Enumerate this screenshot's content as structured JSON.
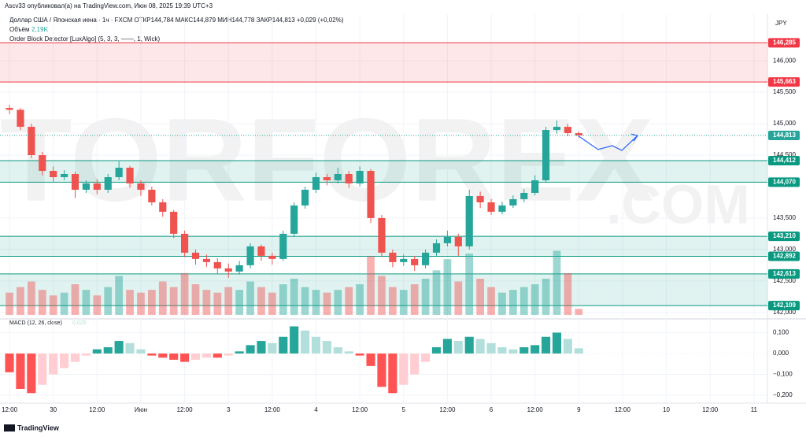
{
  "header": {
    "publisher": "Ascv33 опубликовал(а) на TradingView.com, Июн 08, 2025 19:39 UTC+3",
    "symbol_line": "Доллар США / Японская иена · 1ч · FXCM  ОТКР144,784  МАКС144,879  МИН144,778  ЗАКР144,813  +0,029 (+0,02%)",
    "volume_label": "Объём",
    "volume_value": "2,19K",
    "indicator": "Order Block Detector [LuxAlgo] (5, 3, 3, ——, 1, Wick)",
    "currency": "JPY",
    "footer": "TradingView",
    "watermark": [
      "TORFOREX",
      ".COM"
    ]
  },
  "chart_data": [
    {
      "type": "candlestick",
      "up_color": "#26a69a",
      "down_color": "#ef5350",
      "x": [
        0,
        3,
        6,
        9,
        12,
        15,
        18,
        21,
        24,
        27,
        30,
        33,
        36,
        39,
        42,
        45,
        48,
        51,
        54,
        57,
        60,
        63,
        66,
        69,
        72,
        75,
        78,
        81,
        84,
        87,
        90,
        93,
        96,
        99,
        102,
        105,
        108,
        111,
        114,
        117,
        120,
        123,
        126,
        129,
        132,
        135,
        138,
        141,
        144,
        147,
        150,
        153,
        156
      ],
      "open": [
        145.25,
        145.22,
        144.95,
        144.5,
        144.25,
        144.15,
        144.2,
        143.95,
        144.05,
        143.95,
        144.15,
        144.3,
        144.05,
        143.95,
        143.75,
        143.6,
        143.25,
        142.95,
        142.85,
        142.8,
        142.7,
        142.65,
        142.75,
        143.05,
        142.9,
        142.85,
        143.25,
        143.7,
        143.95,
        144.15,
        144.1,
        144.2,
        144.05,
        144.25,
        143.5,
        142.95,
        142.8,
        142.85,
        142.75,
        142.95,
        143.1,
        143.2,
        143.05,
        143.85,
        143.75,
        143.6,
        143.7,
        143.8,
        143.9,
        144.1,
        144.9,
        144.95,
        144.85
      ],
      "high": [
        145.3,
        145.25,
        145.0,
        144.55,
        144.32,
        144.26,
        144.24,
        144.1,
        144.12,
        144.2,
        144.4,
        144.33,
        144.1,
        144.0,
        143.8,
        143.63,
        143.3,
        143.0,
        142.92,
        142.86,
        142.78,
        142.82,
        143.1,
        143.08,
        142.95,
        143.3,
        143.75,
        144.0,
        144.22,
        144.2,
        144.3,
        144.25,
        144.32,
        144.28,
        143.55,
        143.0,
        142.92,
        142.9,
        143.0,
        143.16,
        143.3,
        143.25,
        143.95,
        143.92,
        143.8,
        143.76,
        143.86,
        143.96,
        144.18,
        144.95,
        145.05,
        145.0,
        144.879
      ],
      "low": [
        145.15,
        144.9,
        144.45,
        144.18,
        144.08,
        144.1,
        143.82,
        143.9,
        143.88,
        143.9,
        144.1,
        143.98,
        143.85,
        143.7,
        143.52,
        143.18,
        142.88,
        142.76,
        142.72,
        142.62,
        142.55,
        142.6,
        142.7,
        142.82,
        142.76,
        142.82,
        143.2,
        143.65,
        143.9,
        144.02,
        144.05,
        143.98,
        144.0,
        143.42,
        142.88,
        142.72,
        142.74,
        142.66,
        142.7,
        142.9,
        143.05,
        142.9,
        143.0,
        143.66,
        143.55,
        143.56,
        143.66,
        143.75,
        143.86,
        144.06,
        144.84,
        144.8,
        144.778
      ],
      "close": [
        145.22,
        144.95,
        144.5,
        144.25,
        144.15,
        144.2,
        143.95,
        144.05,
        143.95,
        144.15,
        144.3,
        144.05,
        143.95,
        143.75,
        143.6,
        143.25,
        142.95,
        142.85,
        142.8,
        142.7,
        142.65,
        142.75,
        143.05,
        142.9,
        142.85,
        143.25,
        143.7,
        143.95,
        144.15,
        144.1,
        144.2,
        144.05,
        144.25,
        143.5,
        142.95,
        142.8,
        142.85,
        142.75,
        142.95,
        143.1,
        143.2,
        143.05,
        143.85,
        143.75,
        143.6,
        143.7,
        143.8,
        143.9,
        144.1,
        144.9,
        144.95,
        144.85,
        144.813
      ],
      "volume": [
        8,
        10,
        12,
        9,
        7,
        8,
        11,
        9,
        7,
        10,
        14,
        9,
        8,
        9,
        12,
        10,
        15,
        11,
        9,
        8,
        10,
        9,
        12,
        10,
        8,
        11,
        13,
        10,
        9,
        8,
        9,
        10,
        11,
        21,
        14,
        10,
        9,
        11,
        13,
        16,
        20,
        12,
        22,
        13,
        10,
        8,
        9,
        10,
        11,
        13,
        23,
        15,
        2.19
      ],
      "volume_lim": [
        0,
        24
      ],
      "xlim": [
        -2.6,
        207.7
      ],
      "ylim": [
        141.96,
        146.59
      ],
      "xticks": [
        {
          "value": 0,
          "label": "12:00"
        },
        {
          "value": 12,
          "label": "30"
        },
        {
          "value": 24,
          "label": "12:00"
        },
        {
          "value": 36,
          "label": "Июн"
        },
        {
          "value": 48,
          "label": "12:00"
        },
        {
          "value": 60,
          "label": "3"
        },
        {
          "value": 72,
          "label": "12:00"
        },
        {
          "value": 84,
          "label": "4"
        },
        {
          "value": 96,
          "label": "12:00"
        },
        {
          "value": 108,
          "label": "5"
        },
        {
          "value": 120,
          "label": "12:00"
        },
        {
          "value": 132,
          "label": "6"
        },
        {
          "value": 144,
          "label": "12:00"
        },
        {
          "value": 156,
          "label": "9"
        },
        {
          "value": 168,
          "label": "12:00"
        },
        {
          "value": 180,
          "label": "10"
        },
        {
          "value": 192,
          "label": "12:00"
        },
        {
          "value": 204,
          "label": "11"
        }
      ],
      "yticks": [
        {
          "value": 146,
          "label": "146,000"
        },
        {
          "value": 145.5,
          "label": "145,500"
        },
        {
          "value": 145,
          "label": "145,000"
        },
        {
          "value": 144.5,
          "label": "144,500"
        },
        {
          "value": 143.5,
          "label": "143,500"
        },
        {
          "value": 143,
          "label": "143,000"
        },
        {
          "value": 142.5,
          "label": "142,500"
        },
        {
          "value": 142,
          "label": "142,000"
        }
      ],
      "zones": [
        {
          "low": 145.663,
          "high": 146.285,
          "color": "#f23645"
        },
        {
          "low": 144.07,
          "high": 144.412,
          "color": "#089981"
        },
        {
          "low": 142.892,
          "high": 143.21,
          "color": "#089981"
        },
        {
          "low": 142.109,
          "high": 142.613,
          "color": "#089981"
        }
      ],
      "price_labels": [
        {
          "value": 146.285,
          "label": "146,285",
          "color": "#f23645"
        },
        {
          "value": 145.663,
          "label": "145,663",
          "color": "#f23645"
        },
        {
          "value": 144.813,
          "label": "144,813",
          "color": "#26a69a"
        },
        {
          "value": 144.412,
          "label": "144,412",
          "color": "#089981"
        },
        {
          "value": 144.07,
          "label": "144,070",
          "color": "#089981"
        },
        {
          "value": 143.21,
          "label": "143,210",
          "color": "#089981"
        },
        {
          "value": 142.892,
          "label": "142,892",
          "color": "#089981"
        },
        {
          "value": 142.613,
          "label": "142,613",
          "color": "#089981"
        },
        {
          "value": 142.109,
          "label": "142,109",
          "color": "#089981"
        }
      ],
      "projection": {
        "color": "#2962ff",
        "x": [
          156,
          161.3,
          165.2,
          167.8,
          172.1
        ],
        "values": [
          144.8,
          144.59,
          144.65,
          144.575,
          144.81
        ]
      }
    },
    {
      "type": "macd",
      "title": "MACD (12, 26, close)",
      "last_label": "0,025",
      "values": [
        -0.09,
        -0.17,
        -0.19,
        -0.15,
        -0.1,
        -0.07,
        -0.04,
        -0.01,
        0.02,
        0.03,
        0.06,
        0.05,
        0.02,
        -0.01,
        -0.02,
        -0.03,
        -0.04,
        -0.03,
        -0.02,
        -0.02,
        -0.01,
        0.01,
        0.04,
        0.06,
        0.05,
        0.08,
        0.13,
        0.11,
        0.08,
        0.06,
        0.03,
        0.01,
        -0.01,
        -0.06,
        -0.16,
        -0.19,
        -0.15,
        -0.1,
        -0.04,
        0.03,
        0.07,
        0.06,
        0.08,
        0.07,
        0.05,
        0.03,
        0.02,
        0.03,
        0.04,
        0.08,
        0.1,
        0.07,
        0.025
      ],
      "ylim": [
        -0.238,
        0.147
      ],
      "yticks": [
        {
          "value": 0.1,
          "label": "0,100"
        },
        {
          "value": 0,
          "label": "0,000"
        },
        {
          "value": -0.1,
          "label": "−0,100"
        },
        {
          "value": -0.2,
          "label": "−0,200"
        }
      ]
    }
  ]
}
